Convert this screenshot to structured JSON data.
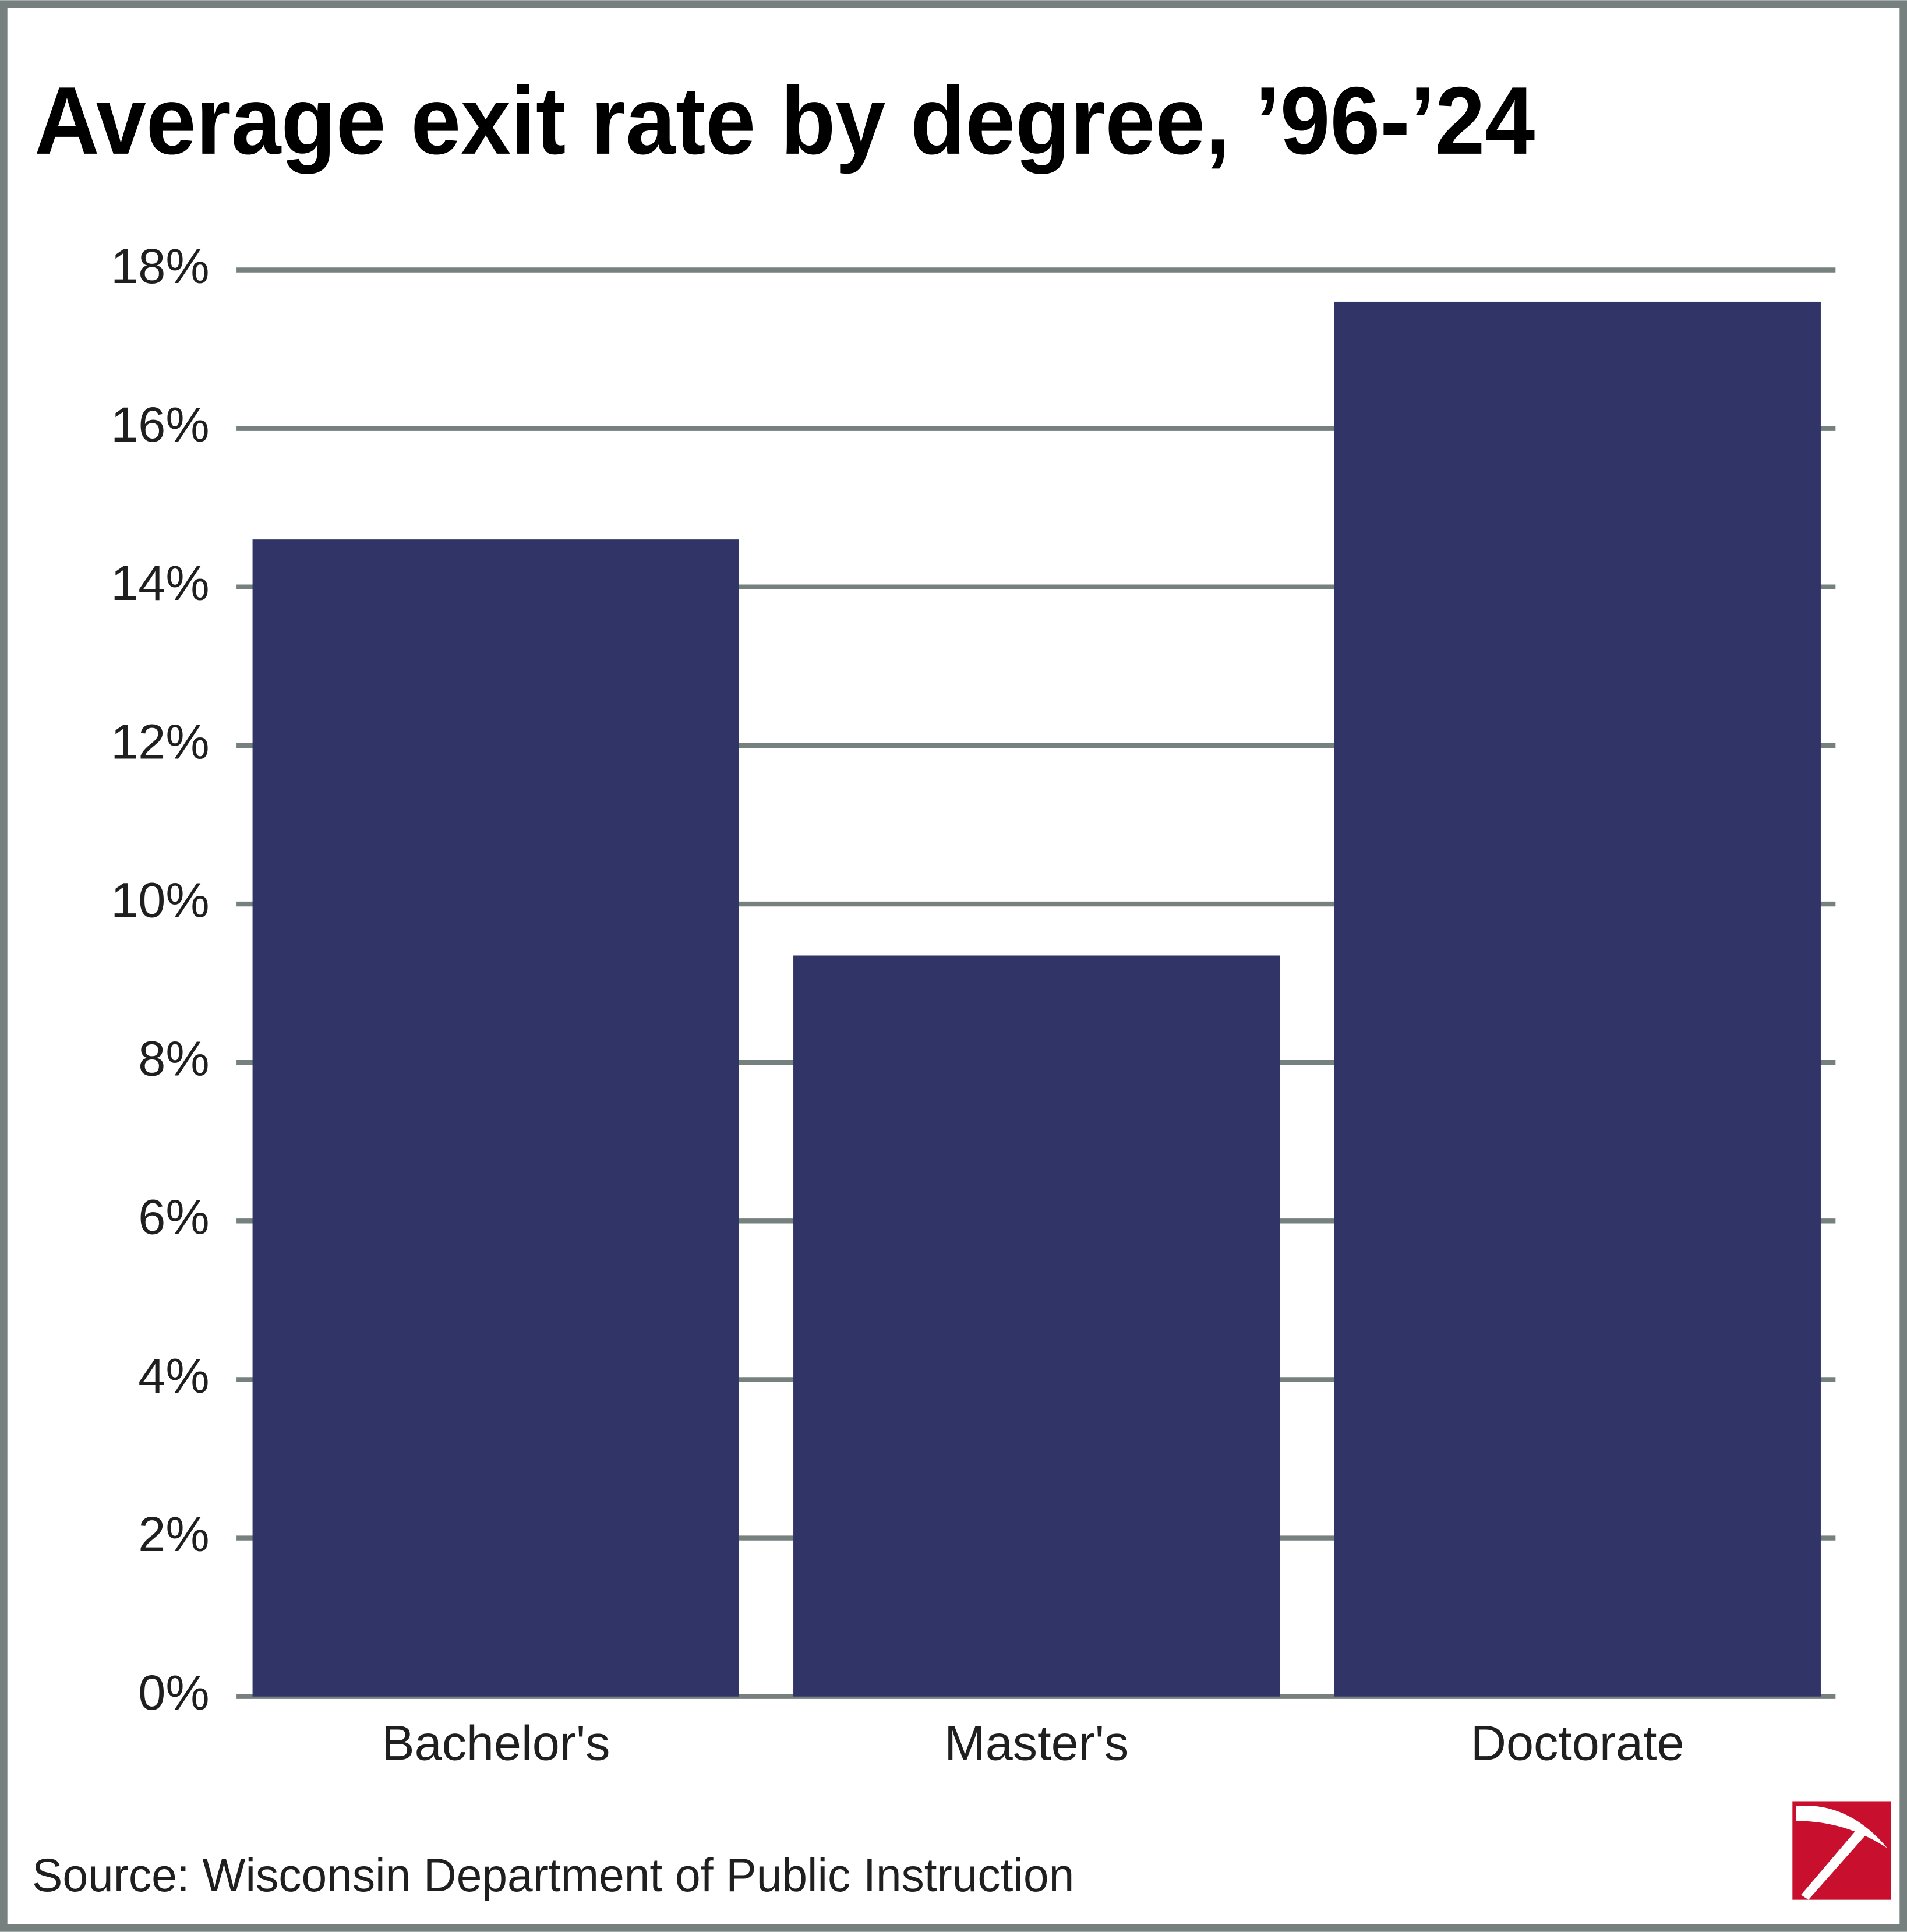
{
  "chart_data": {
    "type": "bar",
    "title": "Average exit rate by degree, ’96-’24",
    "source": "Source: Wisconsin Department of Public Instruction",
    "categories": [
      "Bachelor's",
      "Master's",
      "Doctorate"
    ],
    "values": [
      14.6,
      9.35,
      17.6
    ],
    "color": "#303467",
    "ylim": [
      0,
      18
    ],
    "yticks": [
      {
        "value": 0,
        "label": "0%"
      },
      {
        "value": 2,
        "label": "2%"
      },
      {
        "value": 4,
        "label": "4%"
      },
      {
        "value": 6,
        "label": "6%"
      },
      {
        "value": 8,
        "label": "8%"
      },
      {
        "value": 10,
        "label": "10%"
      },
      {
        "value": 12,
        "label": "12%"
      },
      {
        "value": 14,
        "label": "14%"
      },
      {
        "value": 16,
        "label": "16%"
      },
      {
        "value": 18,
        "label": "18%"
      }
    ],
    "grid": true
  }
}
